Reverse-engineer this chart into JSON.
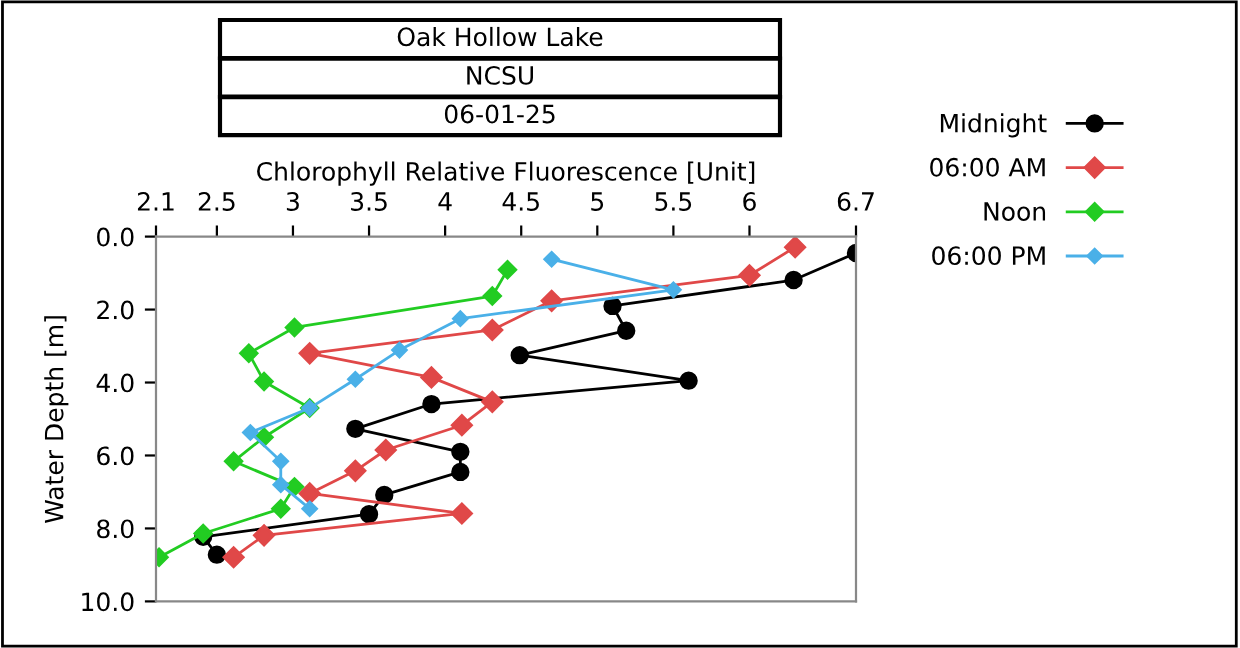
{
  "chart_data": {
    "type": "line",
    "title": "Oak Hollow Lake",
    "subtitle": "NCSU",
    "annotations": [
      "06-01-25"
    ],
    "xlabel": "Chlorophyll Relative Fluorescence [Unit]",
    "ylabel": "Water Depth [m]",
    "xlim": [
      2.1,
      6.7
    ],
    "xticks": [
      2.1,
      2.5,
      3,
      3.5,
      4,
      4.5,
      5,
      5.5,
      6,
      6.7
    ],
    "ylim": [
      10,
      0
    ],
    "yticks": [
      {
        "value": 0,
        "label": "0.0"
      },
      {
        "value": 2,
        "label": "2.0"
      },
      {
        "value": 4,
        "label": "4.0"
      },
      {
        "value": 6,
        "label": "6.0"
      },
      {
        "value": 8,
        "label": "8.0"
      },
      {
        "value": 10,
        "label": "10.0"
      }
    ],
    "grid": false,
    "legend": "top right",
    "line_style": "solid",
    "series": [
      {
        "name": "Midnight",
        "color": "#000000",
        "marker": "circle",
        "x": [
          6.7,
          6.29,
          5.1,
          5.19,
          4.49,
          5.6,
          3.91,
          3.41,
          4.1,
          4.1,
          3.6,
          3.5,
          2.41,
          2.5
        ],
        "values": [
          0.45,
          1.19,
          1.9,
          2.58,
          3.25,
          3.95,
          4.59,
          5.27,
          5.9,
          6.45,
          7.08,
          7.61,
          8.23,
          8.72
        ]
      },
      {
        "name": "06:00 AM",
        "color": "#e04848",
        "marker": "diamond",
        "x": [
          6.3,
          6.0,
          4.7,
          4.31,
          3.11,
          3.91,
          4.31,
          4.11,
          3.61,
          3.41,
          3.11,
          4.11,
          2.81,
          2.61
        ],
        "values": [
          0.29,
          1.06,
          1.76,
          2.56,
          3.2,
          3.86,
          4.53,
          5.17,
          5.85,
          6.42,
          7.04,
          7.59,
          8.19,
          8.79
        ]
      },
      {
        "name": "Noon",
        "color": "#22cc22",
        "marker": "diamond",
        "x": [
          4.41,
          4.31,
          3.01,
          2.71,
          2.81,
          3.11,
          2.81,
          2.61,
          3.01,
          2.92,
          2.41,
          2.12
        ],
        "values": [
          0.91,
          1.63,
          2.49,
          3.2,
          3.97,
          4.7,
          5.5,
          6.16,
          6.86,
          7.46,
          8.14,
          8.79
        ]
      },
      {
        "name": "06:00 PM",
        "color": "#4ab0e8",
        "marker": "diamond",
        "x": [
          4.7,
          5.5,
          4.1,
          3.7,
          3.41,
          3.11,
          2.72,
          2.92,
          2.92,
          3.11
        ],
        "values": [
          0.62,
          1.46,
          2.25,
          3.11,
          3.91,
          4.7,
          5.37,
          6.16,
          6.8,
          7.46
        ]
      }
    ]
  }
}
